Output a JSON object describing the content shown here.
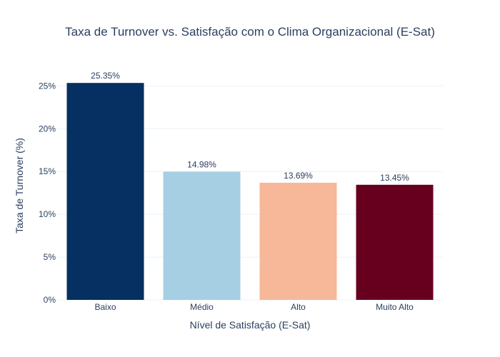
{
  "chart_data": {
    "type": "bar",
    "title": "Taxa de Turnover vs. Satisfação com o Clima Organizacional (E-Sat)",
    "xlabel": "Nível de Satisfação (E-Sat)",
    "ylabel": "Taxa de Turnover (%)",
    "categories": [
      "Baixo",
      "Médio",
      "Alto",
      "Muito Alto"
    ],
    "values": [
      25.35,
      14.98,
      13.69,
      13.45
    ],
    "data_labels": [
      "25.35%",
      "14.98%",
      "13.69%",
      "13.45%"
    ],
    "colors": [
      "#053061",
      "#a6cfe3",
      "#f6b899",
      "#67001f"
    ],
    "ylim": [
      0,
      26.7
    ],
    "yticks": [
      0,
      5,
      10,
      15,
      20,
      25
    ],
    "ytick_labels": [
      "0%",
      "5%",
      "10%",
      "15%",
      "20%",
      "25%"
    ],
    "grid": true,
    "legend": "none"
  }
}
